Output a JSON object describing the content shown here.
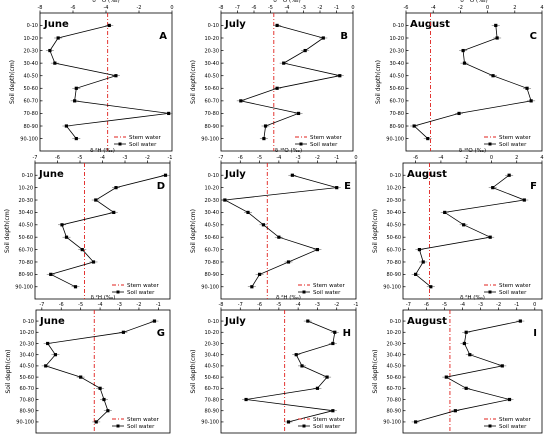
{
  "figure": {
    "stem_legend": "Stem water",
    "soil_legend": "Soil water",
    "ylabel": "Soil depth(cm)",
    "xlabel": "δ ¹⁸O (‰)",
    "xlabel_d": "δ ²H (‰)"
  },
  "chart_data": [
    {
      "type": "line",
      "letter": "A",
      "month": "June",
      "xlim": [
        -8,
        0
      ],
      "xticks": [
        -8,
        -6,
        -4,
        -2,
        0
      ],
      "depths": [
        "0-10",
        "10-20",
        "20-30",
        "30-40",
        "40-50",
        "50-60",
        "60-70",
        "70-80",
        "80-90",
        "90-100"
      ],
      "values": [
        -3.8,
        -6.9,
        -7.4,
        -7.1,
        -3.4,
        -5.8,
        -5.9,
        -0.2,
        -6.4,
        -5.8
      ],
      "stem": -3.9
    },
    {
      "type": "line",
      "letter": "B",
      "month": "July",
      "xlim": [
        -8,
        0
      ],
      "xticks": [
        -8,
        -7,
        -6,
        -5,
        -4,
        -3,
        -2,
        -1,
        0
      ],
      "depths": [
        "0-10",
        "10-20",
        "20-30",
        "30-40",
        "40-50",
        "50-60",
        "60-70",
        "70-80",
        "80-90",
        "90-100"
      ],
      "values": [
        -4.6,
        -1.8,
        -2.9,
        -4.2,
        -0.8,
        -4.6,
        -6.8,
        -3.3,
        -5.3,
        -5.4
      ],
      "stem": -4.8
    },
    {
      "type": "line",
      "letter": "C",
      "month": "August",
      "xlim": [
        -6,
        4
      ],
      "xticks": [
        -6,
        -4,
        -2,
        0,
        2,
        4
      ],
      "depths": [
        "0-10",
        "10-20",
        "20-30",
        "30-40",
        "40-50",
        "50-60",
        "60-70",
        "70-80",
        "80-90",
        "90-100"
      ],
      "values": [
        0.6,
        0.7,
        -1.8,
        -1.7,
        0.4,
        2.9,
        3.2,
        -2.1,
        -5.4,
        -4.4
      ],
      "stem": -4.2
    },
    {
      "type": "line",
      "letter": "D",
      "month": "June",
      "xlim": [
        -7,
        -1
      ],
      "xticks": [
        -7,
        -6,
        -5,
        -4,
        -3,
        -2,
        -1
      ],
      "depths": [
        "0-10",
        "10-20",
        "20-30",
        "30-40",
        "40-50",
        "50-60",
        "60-70",
        "70-80",
        "80-90",
        "90-100"
      ],
      "values": [
        -1.2,
        -3.4,
        -4.3,
        -3.5,
        -5.8,
        -5.6,
        -4.9,
        -4.4,
        -6.3,
        -5.2
      ],
      "stem": -4.8
    },
    {
      "type": "line",
      "letter": "E",
      "month": "July",
      "xlim": [
        -7,
        0
      ],
      "xticks": [
        -7,
        -6,
        -5,
        -4,
        -3,
        -2,
        -1,
        0
      ],
      "depths": [
        "0-10",
        "10-20",
        "20-30",
        "30-40",
        "40-50",
        "50-60",
        "60-70",
        "70-80",
        "80-90",
        "90-100"
      ],
      "values": [
        -3.3,
        -1.0,
        -6.8,
        -5.6,
        -4.8,
        -4.0,
        -2.0,
        -3.5,
        -5.0,
        -5.4
      ],
      "stem": -4.6
    },
    {
      "type": "line",
      "letter": "F",
      "month": "August",
      "xlim": [
        -7,
        4
      ],
      "xticks": [
        -6,
        -4,
        -2,
        0,
        2,
        4
      ],
      "depths": [
        "0-10",
        "10-20",
        "20-30",
        "30-40",
        "40-50",
        "50-60",
        "60-70",
        "70-80",
        "80-90",
        "90-100"
      ],
      "values": [
        1.4,
        0.1,
        2.6,
        -3.7,
        -2.2,
        -0.1,
        -5.7,
        -5.4,
        -6.0,
        -4.8
      ],
      "stem": -4.9
    },
    {
      "type": "line",
      "letter": "G",
      "month": "June",
      "xlim": [
        -7.3,
        -0.4
      ],
      "xticks": [
        -7,
        -6,
        -5,
        -4,
        -3,
        -2,
        -1
      ],
      "depths": [
        "0-10",
        "10-20",
        "20-30",
        "30-40",
        "40-50",
        "50-60",
        "60-70",
        "70-80",
        "80-90",
        "90-100"
      ],
      "values": [
        -1.2,
        -2.8,
        -6.7,
        -6.3,
        -6.8,
        -5.0,
        -4.0,
        -3.8,
        -3.6,
        -4.2
      ],
      "stem": -4.3
    },
    {
      "type": "line",
      "letter": "H",
      "month": "July",
      "xlim": [
        -8,
        -1
      ],
      "xticks": [
        -8,
        -7,
        -6,
        -5,
        -4,
        -3,
        -2,
        -1
      ],
      "depths": [
        "0-10",
        "10-20",
        "20-30",
        "30-40",
        "40-50",
        "50-60",
        "60-70",
        "70-80",
        "80-90",
        "90-100"
      ],
      "values": [
        -3.5,
        -2.1,
        -2.2,
        -4.1,
        -3.8,
        -2.5,
        -3.0,
        -6.7,
        -2.2,
        -4.5
      ],
      "stem": -4.7
    },
    {
      "type": "line",
      "letter": "I",
      "month": "August",
      "xlim": [
        -7.3,
        0.4
      ],
      "xticks": [
        -7,
        -6,
        -5,
        -4,
        -3,
        -2,
        -1,
        0
      ],
      "depths": [
        "0-10",
        "10-20",
        "20-30",
        "30-40",
        "40-50",
        "50-60",
        "60-70",
        "70-80",
        "80-90",
        "90-100"
      ],
      "values": [
        -0.8,
        -3.8,
        -3.9,
        -3.6,
        -1.8,
        -4.9,
        -3.8,
        -1.4,
        -4.4,
        -6.6
      ],
      "stem": -4.7
    }
  ]
}
